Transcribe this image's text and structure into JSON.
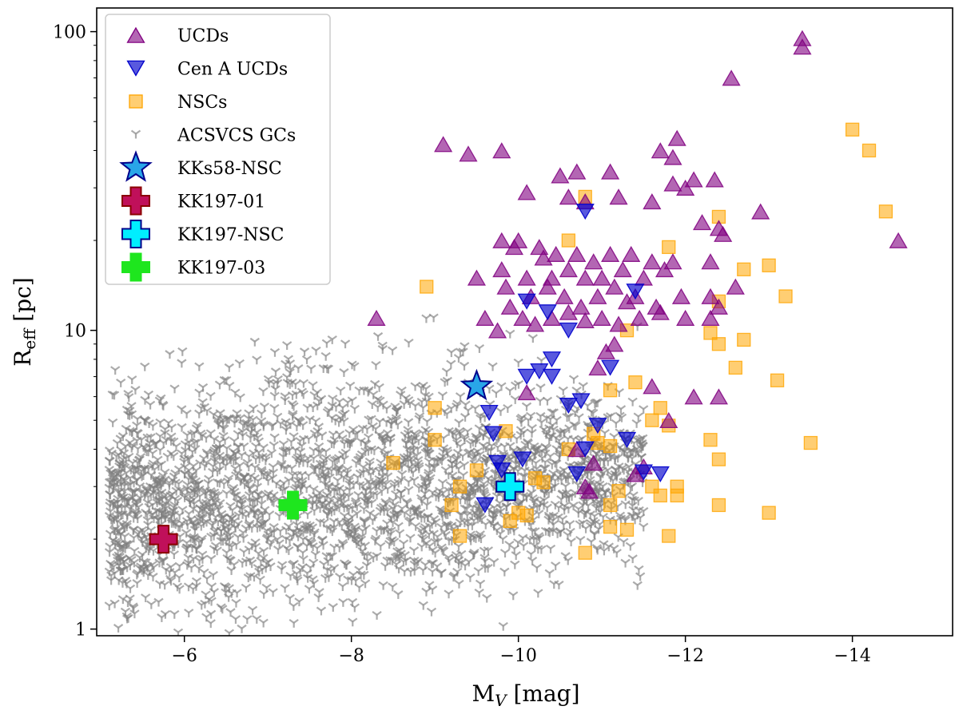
{
  "chart_data": {
    "type": "scatter",
    "x_scale": "linear",
    "y_scale": "log",
    "x_inverted": true,
    "xlim": [
      -4.95,
      -15.2
    ],
    "ylim": [
      0.95,
      120
    ],
    "xlabel": "M",
    "xlabel_sub": "V",
    "xlabel_unit": " [mag]",
    "ylabel": "R",
    "ylabel_sub": "eff",
    "ylabel_unit": " [pc]",
    "x_ticks": [
      {
        "value": -6,
        "label": "−6"
      },
      {
        "value": -8,
        "label": "−8"
      },
      {
        "value": -10,
        "label": "−10"
      },
      {
        "value": -12,
        "label": "−12"
      },
      {
        "value": -14,
        "label": "−14"
      }
    ],
    "y_ticks": [
      {
        "value": 1,
        "label": "1"
      },
      {
        "value": 10,
        "label": "10"
      },
      {
        "value": 100,
        "label": "100"
      }
    ],
    "legend_position": "top-left",
    "series": [
      {
        "name": "UCDs",
        "marker": "triangle-up",
        "color": "#800080",
        "points": [
          [
            -13.4,
            95
          ],
          [
            -13.4,
            89
          ],
          [
            -12.55,
            70
          ],
          [
            -14.55,
            20
          ],
          [
            -12.9,
            25
          ],
          [
            -9.1,
            42
          ],
          [
            -9.4,
            39
          ],
          [
            -9.8,
            40
          ],
          [
            -8.3,
            11
          ],
          [
            -11.9,
            44
          ],
          [
            -11.7,
            40
          ],
          [
            -11.85,
            38
          ],
          [
            -11.1,
            34
          ],
          [
            -10.7,
            34
          ],
          [
            -10.5,
            33
          ],
          [
            -12.1,
            32
          ],
          [
            -12.35,
            32
          ],
          [
            -11.85,
            31
          ],
          [
            -12.0,
            30
          ],
          [
            -10.1,
            29
          ],
          [
            -10.6,
            28
          ],
          [
            -10.8,
            27
          ],
          [
            -11.2,
            28
          ],
          [
            -11.6,
            27
          ],
          [
            -12.2,
            23
          ],
          [
            -12.4,
            22
          ],
          [
            -12.45,
            21
          ],
          [
            -9.8,
            20
          ],
          [
            -9.95,
            19
          ],
          [
            -10.0,
            20
          ],
          [
            -10.25,
            19
          ],
          [
            -10.45,
            18
          ],
          [
            -10.7,
            18
          ],
          [
            -10.9,
            17
          ],
          [
            -11.1,
            18
          ],
          [
            -11.35,
            18
          ],
          [
            -11.6,
            17
          ],
          [
            -11.85,
            17
          ],
          [
            -12.3,
            17
          ],
          [
            -9.5,
            15
          ],
          [
            -9.8,
            16
          ],
          [
            -10.1,
            15
          ],
          [
            -10.4,
            15
          ],
          [
            -10.6,
            16
          ],
          [
            -10.8,
            15
          ],
          [
            -11.0,
            15
          ],
          [
            -11.25,
            16
          ],
          [
            -11.5,
            15
          ],
          [
            -11.75,
            16
          ],
          [
            -9.85,
            14
          ],
          [
            -10.15,
            13
          ],
          [
            -10.35,
            14
          ],
          [
            -10.55,
            13
          ],
          [
            -10.75,
            12
          ],
          [
            -10.95,
            13
          ],
          [
            -11.15,
            14
          ],
          [
            -11.4,
            13
          ],
          [
            -11.65,
            12
          ],
          [
            -11.95,
            13
          ],
          [
            -12.3,
            13
          ],
          [
            -12.6,
            14
          ],
          [
            -12.4,
            12
          ],
          [
            -9.6,
            11
          ],
          [
            -9.75,
            10
          ],
          [
            -9.9,
            12
          ],
          [
            -10.05,
            11
          ],
          [
            -10.2,
            10.5
          ],
          [
            -10.4,
            11
          ],
          [
            -10.6,
            11.5
          ],
          [
            -10.8,
            10.8
          ],
          [
            -11.0,
            11
          ],
          [
            -11.2,
            10.5
          ],
          [
            -11.45,
            11
          ],
          [
            -11.7,
            11.5
          ],
          [
            -12.0,
            11
          ],
          [
            -12.3,
            11
          ],
          [
            -11.15,
            9.0
          ],
          [
            -11.05,
            8.5
          ],
          [
            -12.1,
            6.0
          ],
          [
            -11.6,
            6.5
          ],
          [
            -10.95,
            7.5
          ],
          [
            -10.1,
            6.2
          ],
          [
            -10.7,
            4.0
          ],
          [
            -10.9,
            3.6
          ],
          [
            -10.8,
            3.0
          ],
          [
            -11.4,
            3.3
          ],
          [
            -11.5,
            3.5
          ],
          [
            -10.85,
            2.9
          ],
          [
            -11.8,
            5.0
          ],
          [
            -12.4,
            6.0
          ],
          [
            -11.3,
            12.5
          ],
          [
            -10.3,
            17.5
          ]
        ]
      },
      {
        "name": "Cen A UCDs",
        "marker": "triangle-down",
        "color": "#0000cc",
        "points": [
          [
            -10.8,
            25
          ],
          [
            -10.1,
            12.5
          ],
          [
            -10.35,
            11.5
          ],
          [
            -10.6,
            10
          ],
          [
            -11.4,
            13.5
          ],
          [
            -10.4,
            8
          ],
          [
            -10.25,
            7.3
          ],
          [
            -10.1,
            7
          ],
          [
            -10.4,
            7
          ],
          [
            -11.1,
            7.5
          ],
          [
            -9.65,
            5.3
          ],
          [
            -9.7,
            4.5
          ],
          [
            -10.6,
            5.6
          ],
          [
            -10.75,
            5.8
          ],
          [
            -10.95,
            4.8
          ],
          [
            -11.3,
            4.3
          ],
          [
            -10.8,
            4.0
          ],
          [
            -9.75,
            3.6
          ],
          [
            -10.05,
            3.7
          ],
          [
            -10.7,
            3.3
          ],
          [
            -11.5,
            3.35
          ],
          [
            -11.7,
            3.3
          ],
          [
            -9.6,
            2.6
          ],
          [
            -9.8,
            3.4
          ]
        ]
      },
      {
        "name": "NSCs",
        "marker": "square",
        "color": "#ffa500",
        "points": [
          [
            -14.0,
            47
          ],
          [
            -14.2,
            40
          ],
          [
            -14.4,
            25
          ],
          [
            -10.8,
            28
          ],
          [
            -12.4,
            24
          ],
          [
            -11.8,
            19
          ],
          [
            -12.7,
            16
          ],
          [
            -13.0,
            16.5
          ],
          [
            -13.2,
            13
          ],
          [
            -12.4,
            12.5
          ],
          [
            -8.9,
            14
          ],
          [
            -10.6,
            20
          ],
          [
            -12.3,
            9.8
          ],
          [
            -12.4,
            9
          ],
          [
            -12.7,
            9.3
          ],
          [
            -11.3,
            10
          ],
          [
            -12.6,
            7.5
          ],
          [
            -13.1,
            6.8
          ],
          [
            -11.4,
            6.7
          ],
          [
            -11.1,
            6.3
          ],
          [
            -11.6,
            5
          ],
          [
            -11.7,
            5.5
          ],
          [
            -11.8,
            4.8
          ],
          [
            -12.3,
            4.3
          ],
          [
            -12.4,
            3.7
          ],
          [
            -13.5,
            4.2
          ],
          [
            -9.0,
            5.5
          ],
          [
            -9.0,
            4.3
          ],
          [
            -9.85,
            4.6
          ],
          [
            -10.6,
            4.0
          ],
          [
            -10.9,
            4.5
          ],
          [
            -10.95,
            4.2
          ],
          [
            -11.1,
            4.1
          ],
          [
            -8.5,
            3.6
          ],
          [
            -9.5,
            3.4
          ],
          [
            -9.3,
            3.0
          ],
          [
            -10.2,
            3.2
          ],
          [
            -10.3,
            3.1
          ],
          [
            -11.6,
            3.0
          ],
          [
            -11.7,
            2.8
          ],
          [
            -11.9,
            3.0
          ],
          [
            -11.9,
            2.8
          ],
          [
            -9.2,
            2.6
          ],
          [
            -10.0,
            2.45
          ],
          [
            -9.9,
            2.3
          ],
          [
            -10.1,
            2.4
          ],
          [
            -11.1,
            2.6
          ],
          [
            -11.2,
            2.9
          ],
          [
            -12.4,
            2.6
          ],
          [
            -13.0,
            2.45
          ],
          [
            -9.3,
            2.05
          ],
          [
            -11.1,
            2.2
          ],
          [
            -11.3,
            2.15
          ],
          [
            -11.8,
            2.05
          ],
          [
            -10.8,
            1.8
          ]
        ]
      },
      {
        "name": "ACSVCS GCs",
        "marker": "tri-down",
        "color": "#808080",
        "points": []
      },
      {
        "name": "KKs58-NSC",
        "marker": "star",
        "color": "#29a6e8",
        "edge": "#00008b",
        "points": [
          [
            -9.5,
            6.5
          ]
        ]
      },
      {
        "name": "KK197-01",
        "marker": "plus",
        "color": "#c0105a",
        "edge": "#8b0000",
        "points": [
          [
            -5.75,
            2.0
          ]
        ]
      },
      {
        "name": "KK197-NSC",
        "marker": "plus",
        "color": "#00eeff",
        "edge": "#00008b",
        "points": [
          [
            -9.9,
            3.0
          ]
        ]
      },
      {
        "name": "KK197-03",
        "marker": "plus",
        "color": "#1ee61e",
        "edge": "#1ee61e",
        "points": [
          [
            -7.3,
            2.6
          ]
        ]
      }
    ]
  }
}
